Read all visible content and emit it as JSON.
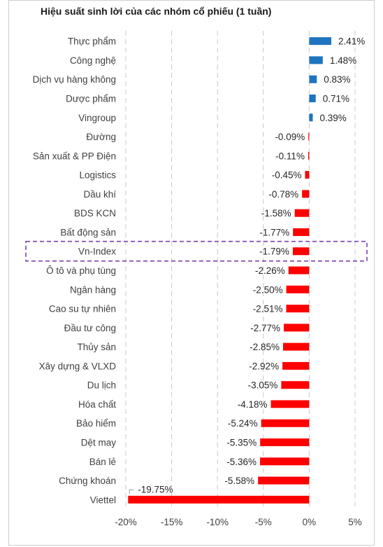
{
  "chart_data": {
    "type": "bar",
    "orientation": "horizontal",
    "title": "Hiệu suất sinh lời của các nhóm cổ phiếu (1 tuần)",
    "categories": [
      "Thực phẩm",
      "Công nghệ",
      "Dịch vụ hàng không",
      "Dược phẩm",
      "Vingroup",
      "Đường",
      "Sản xuất & PP Điện",
      "Logistics",
      "Dầu khí",
      "BDS KCN",
      "Bất động sản",
      "Vn-Index",
      "Ô tô và phụ tùng",
      "Ngân hàng",
      "Cao su tự nhiên",
      "Đầu tư công",
      "Thủy sản",
      "Xây dựng & VLXD",
      "Du lịch",
      "Hóa chất",
      "Bảo hiểm",
      "Dệt may",
      "Bán lẻ",
      "Chứng khoán",
      "Viettel"
    ],
    "values": [
      2.41,
      1.48,
      0.83,
      0.71,
      0.39,
      -0.09,
      -0.11,
      -0.45,
      -0.78,
      -1.58,
      -1.77,
      -1.79,
      -2.26,
      -2.5,
      -2.51,
      -2.77,
      -2.85,
      -2.92,
      -3.05,
      -4.18,
      -5.24,
      -5.35,
      -5.36,
      -5.58,
      -19.75
    ],
    "value_labels": [
      "2.41%",
      "1.48%",
      "0.83%",
      "0.71%",
      "0.39%",
      "-0.09%",
      "-0.11%",
      "-0.45%",
      "-0.78%",
      "-1.58%",
      "-1.77%",
      "-1.79%",
      "-2.26%",
      "-2.50%",
      "-2.51%",
      "-2.77%",
      "-2.85%",
      "-2.92%",
      "-3.05%",
      "-4.18%",
      "-5.24%",
      "-5.35%",
      "-5.36%",
      "-5.58%",
      "-19.75%"
    ],
    "xlim": [
      -20,
      5
    ],
    "x_ticks": [
      -20,
      -15,
      -10,
      -5,
      0,
      5
    ],
    "x_tick_labels": [
      "-20%",
      "-15%",
      "-10%",
      "-5%",
      "0%",
      "5%"
    ],
    "grid": "vertical dashed",
    "highlighted_category": "Vn-Index",
    "colors": {
      "positive": "#1f74c0",
      "negative": "#ff0000",
      "highlight_border": "#7a3fb0"
    }
  }
}
